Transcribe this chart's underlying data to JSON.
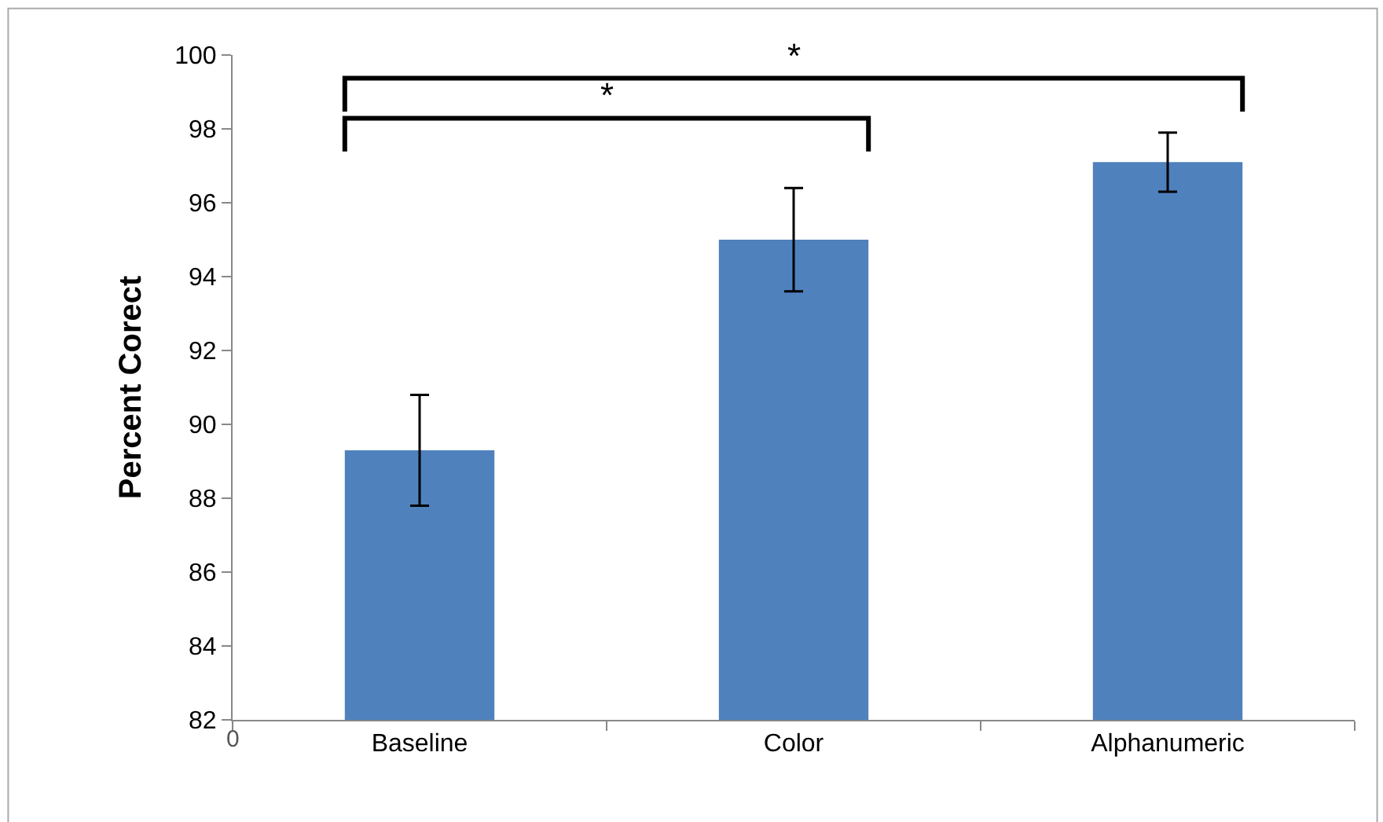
{
  "chart_data": {
    "type": "bar",
    "ylabel": "Percent Corect",
    "categories": [
      "Baseline",
      "Color",
      "Alphanumeric"
    ],
    "values": [
      89.3,
      95.0,
      97.1
    ],
    "errors": [
      1.5,
      1.4,
      0.8
    ],
    "color": "#4f81bd",
    "ylim": [
      82,
      100
    ],
    "yticks": [
      82,
      84,
      86,
      88,
      90,
      92,
      94,
      96,
      98,
      100
    ],
    "annotations": [
      "*",
      "*",
      "0"
    ]
  }
}
